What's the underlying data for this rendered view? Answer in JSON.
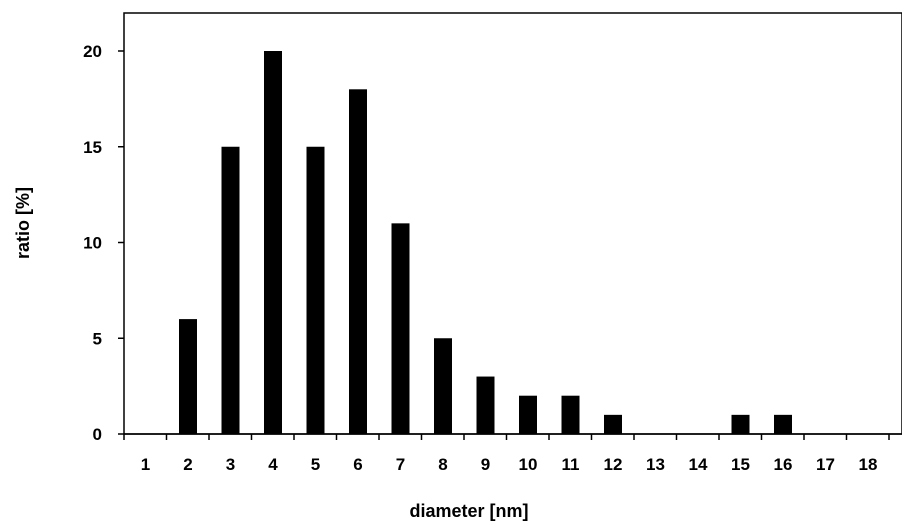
{
  "chart_data": {
    "type": "bar",
    "title": "",
    "xlabel": "diameter [nm]",
    "ylabel": "ratio [%]",
    "categories": [
      "1",
      "2",
      "3",
      "4",
      "5",
      "6",
      "7",
      "8",
      "9",
      "10",
      "11",
      "12",
      "13",
      "14",
      "15",
      "16",
      "17",
      "18"
    ],
    "values": [
      0,
      6,
      15,
      20,
      15,
      18,
      11,
      5,
      3,
      2,
      2,
      1,
      0,
      0,
      1,
      1,
      0,
      0
    ],
    "ylim": [
      0,
      20
    ],
    "yticks": [
      0,
      5,
      10,
      15,
      20
    ],
    "grid": false,
    "legend": "none",
    "bar_color": "#000000"
  }
}
